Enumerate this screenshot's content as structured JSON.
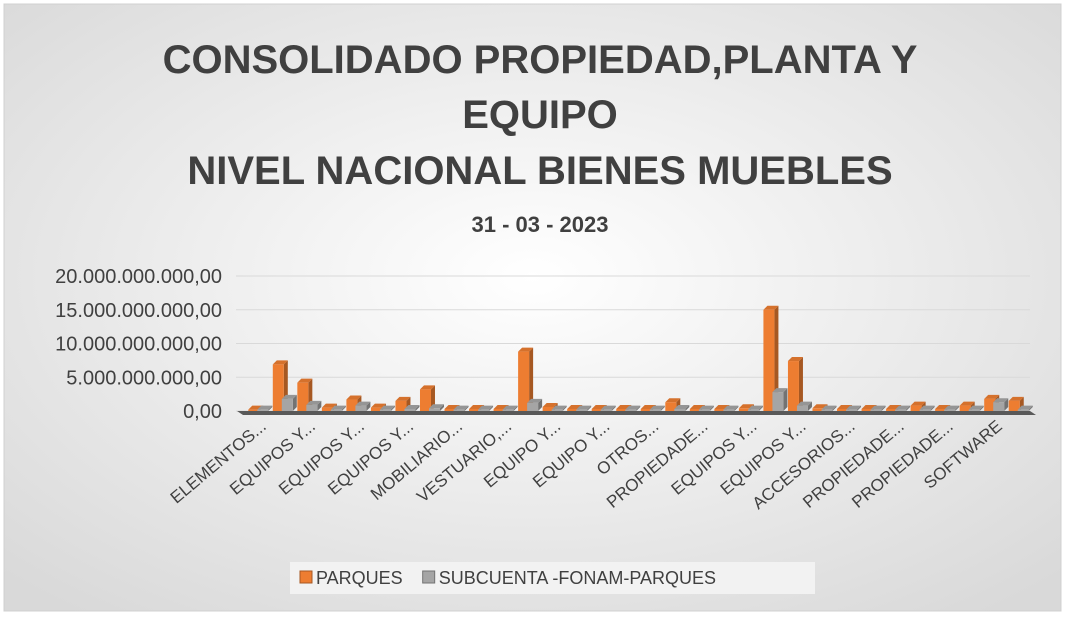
{
  "chart_data": {
    "type": "bar3d",
    "title": [
      "CONSOLIDADO PROPIEDAD,PLANTA Y",
      "EQUIPO",
      "NIVEL NACIONAL  BIENES MUEBLES"
    ],
    "subtitle": "31 - 03 - 2023",
    "categories": [
      "ELEMENTOS...",
      null,
      "EQUIPOS Y...",
      null,
      "EQUIPOS Y...",
      null,
      "EQUIPOS Y...",
      null,
      "MOBILIARIO...",
      null,
      "VESTUARIO,...",
      null,
      "EQUIPO Y...",
      null,
      "EQUIPO Y...",
      null,
      "OTROS...",
      null,
      "PROPIEDADE...",
      null,
      "EQUIPOS Y...",
      null,
      "EQUIPOS Y...",
      null,
      "ACCESORIOS...",
      null,
      "PROPIEDADE...",
      null,
      "PROPIEDADE...",
      null,
      "SOFTWARE",
      null
    ],
    "series": [
      {
        "name": "PARQUES",
        "color": "#ed7d31",
        "values": [
          200000000,
          6900000000,
          4200000000,
          500000000,
          1700000000,
          500000000,
          1500000000,
          3200000000,
          300000000,
          300000000,
          300000000,
          8800000000,
          600000000,
          300000000,
          300000000,
          300000000,
          300000000,
          1300000000,
          300000000,
          300000000,
          400000000,
          15000000000,
          7400000000,
          400000000,
          300000000,
          300000000,
          300000000,
          800000000,
          300000000,
          800000000,
          1800000000,
          1500000000
        ]
      },
      {
        "name": "SUBCUENTA -FONAM-PARQUES",
        "color": "#a5a5a5",
        "values": [
          200000000,
          1800000000,
          900000000,
          200000000,
          800000000,
          200000000,
          300000000,
          400000000,
          200000000,
          200000000,
          200000000,
          1200000000,
          200000000,
          200000000,
          200000000,
          200000000,
          200000000,
          300000000,
          200000000,
          200000000,
          200000000,
          2800000000,
          800000000,
          200000000,
          200000000,
          200000000,
          200000000,
          200000000,
          200000000,
          200000000,
          1300000000,
          200000000
        ]
      }
    ],
    "ylim": [
      0,
      20000000000
    ],
    "yticks": [
      {
        "value": 0,
        "label": "0,00"
      },
      {
        "value": 5000000000,
        "label": "5.000.000.000,00"
      },
      {
        "value": 10000000000,
        "label": "10.000.000.000,00"
      },
      {
        "value": 15000000000,
        "label": "15.000.000.000,00"
      },
      {
        "value": 20000000000,
        "label": "20.000.000.000,00"
      }
    ],
    "grid": true
  }
}
